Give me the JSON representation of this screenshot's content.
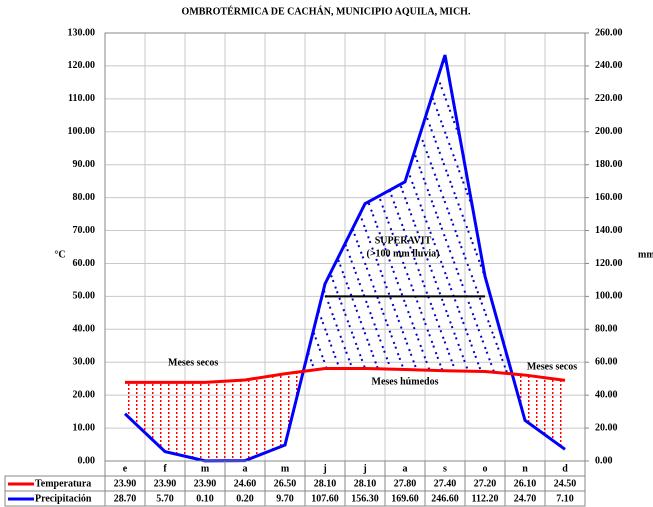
{
  "chart_data": {
    "type": "ombrothermic",
    "title": "OMBROTÉRMICA DE CACHÁN, MUNICIPIO AQUILA, MICH.",
    "y_label": "°C",
    "y2_label": "mm",
    "categories": [
      "e",
      "f",
      "m",
      "a",
      "m",
      "j",
      "j",
      "a",
      "s",
      "o",
      "n",
      "d"
    ],
    "series": [
      {
        "name": "Temperatura",
        "color": "#ff0000",
        "values": [
          23.9,
          23.9,
          23.9,
          24.6,
          26.5,
          28.1,
          28.1,
          27.8,
          27.4,
          27.2,
          26.1,
          24.5
        ],
        "value_labels": [
          "23.90",
          "23.90",
          "23.90",
          "24.60",
          "26.50",
          "28.10",
          "28.10",
          "27.80",
          "27.40",
          "27.20",
          "26.10",
          "24.50"
        ]
      },
      {
        "name": "Precipitación",
        "color": "#0000ff",
        "axis": "y2",
        "values": [
          28.7,
          5.7,
          0.1,
          0.2,
          9.7,
          107.6,
          156.3,
          169.6,
          246.6,
          112.2,
          24.7,
          7.1
        ],
        "value_labels": [
          "28.70",
          "5.70",
          "0.10",
          "0.20",
          "9.70",
          "107.60",
          "156.30",
          "169.60",
          "246.60",
          "112.20",
          "24.70",
          "7.10"
        ]
      }
    ],
    "ylim": [
      0,
      130
    ],
    "yticks": [
      {
        "value": 0,
        "label": "0.00"
      },
      {
        "value": 10,
        "label": "10.00"
      },
      {
        "value": 20,
        "label": "20.00"
      },
      {
        "value": 30,
        "label": "30.00"
      },
      {
        "value": 40,
        "label": "40.00"
      },
      {
        "value": 50,
        "label": "50.00"
      },
      {
        "value": 60,
        "label": "60.00"
      },
      {
        "value": 70,
        "label": "70.00"
      },
      {
        "value": 80,
        "label": "80.00"
      },
      {
        "value": 90,
        "label": "90.00"
      },
      {
        "value": 100,
        "label": "100.00"
      },
      {
        "value": 110,
        "label": "110.00"
      },
      {
        "value": 120,
        "label": "120.00"
      },
      {
        "value": 130,
        "label": "130.00"
      }
    ],
    "y2lim": [
      0,
      260
    ],
    "y2ticks": [
      {
        "value": 0,
        "label": "0.00"
      },
      {
        "value": 20,
        "label": "20.00"
      },
      {
        "value": 40,
        "label": "40.00"
      },
      {
        "value": 60,
        "label": "60.00"
      },
      {
        "value": 80,
        "label": "80.00"
      },
      {
        "value": 100,
        "label": "100.00"
      },
      {
        "value": 120,
        "label": "120.00"
      },
      {
        "value": 140,
        "label": "140.00"
      },
      {
        "value": 160,
        "label": "160.00"
      },
      {
        "value": 180,
        "label": "180.00"
      },
      {
        "value": 200,
        "label": "200.00"
      },
      {
        "value": 220,
        "label": "220.00"
      },
      {
        "value": 240,
        "label": "240.00"
      },
      {
        "value": 260,
        "label": "260.00"
      }
    ],
    "grid": true,
    "threshold": 100,
    "annotations": [
      "Meses secos",
      "Meses secos",
      "Meses húmedos",
      "SUPERAVIT",
      "(>100 mm lluvia)"
    ]
  }
}
